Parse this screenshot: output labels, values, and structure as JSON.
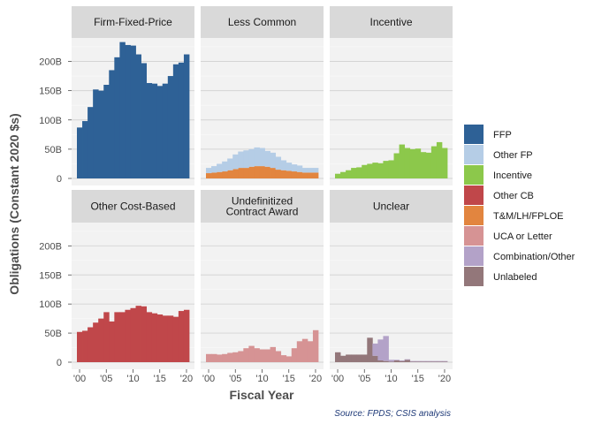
{
  "chart_data": {
    "type": "bar",
    "subtype": "faceted-stacked-bar",
    "xlabel": "Fiscal Year",
    "ylabel": "Obligations (Constant 2020 $s)",
    "source": "Source: FPDS; CSIS analysis",
    "x": [
      2000,
      2001,
      2002,
      2003,
      2004,
      2005,
      2006,
      2007,
      2008,
      2009,
      2010,
      2011,
      2012,
      2013,
      2014,
      2015,
      2016,
      2017,
      2018,
      2019,
      2020
    ],
    "x_ticks": [
      {
        "value": 2000,
        "label": "'00"
      },
      {
        "value": 2005,
        "label": "'05"
      },
      {
        "value": 2010,
        "label": "'10"
      },
      {
        "value": 2015,
        "label": "'15"
      },
      {
        "value": 2020,
        "label": "'20"
      }
    ],
    "y_ticks": [
      {
        "value": 0,
        "label": "0"
      },
      {
        "value": 50,
        "label": "50B"
      },
      {
        "value": 100,
        "label": "100B"
      },
      {
        "value": 150,
        "label": "150B"
      },
      {
        "value": 200,
        "label": "200B"
      }
    ],
    "ylim": [
      0,
      240
    ],
    "y_units": "billions of constant 2020 dollars",
    "grid": true,
    "legend_position": "right",
    "legend": [
      {
        "label": "FFP",
        "color": "#2e6196"
      },
      {
        "label": "Other FP",
        "color": "#b5cde6"
      },
      {
        "label": "Incentive",
        "color": "#8cc84b"
      },
      {
        "label": "Other CB",
        "color": "#c0474a"
      },
      {
        "label": "T&M/LH/FPLOE",
        "color": "#e2853f"
      },
      {
        "label": "UCA or Letter",
        "color": "#d69394"
      },
      {
        "label": "Combination/Other",
        "color": "#b3a2c8"
      },
      {
        "label": "Unlabeled",
        "color": "#93777a"
      }
    ],
    "panels": [
      {
        "title": "Firm-Fixed-Price",
        "series": [
          {
            "name": "FFP",
            "color": "#2e6196",
            "values": [
              87,
              98,
              122,
              152,
              150,
              160,
              185,
              207,
              233,
              228,
              227,
              212,
              197,
              163,
              162,
              158,
              162,
              175,
              195,
              198,
              212
            ]
          }
        ]
      },
      {
        "title": "Less Common",
        "series": [
          {
            "name": "T&M/LH/FPLOE",
            "color": "#e2853f",
            "values": [
              9,
              10,
              11,
              12,
              14,
              16,
              18,
              18,
              20,
              21,
              21,
              20,
              18,
              15,
              14,
              13,
              12,
              11,
              10,
              10,
              10
            ]
          },
          {
            "name": "Other FP",
            "color": "#b5cde6",
            "values": [
              9,
              11,
              14,
              17,
              20,
              25,
              28,
              30,
              30,
              32,
              31,
              27,
              26,
              22,
              17,
              14,
              12,
              11,
              8,
              8,
              8
            ]
          }
        ]
      },
      {
        "title": "Incentive",
        "series": [
          {
            "name": "Incentive",
            "color": "#8cc84b",
            "values": [
              8,
              11,
              14,
              18,
              19,
              23,
              25,
              27,
              26,
              30,
              31,
              43,
              58,
              52,
              50,
              51,
              45,
              44,
              55,
              62,
              52
            ]
          }
        ]
      },
      {
        "title": "Other Cost-Based",
        "series": [
          {
            "name": "Other CB",
            "color": "#c0474a",
            "values": [
              52,
              54,
              60,
              68,
              75,
              86,
              70,
              86,
              86,
              90,
              93,
              97,
              96,
              86,
              84,
              82,
              80,
              80,
              78,
              88,
              90
            ]
          }
        ]
      },
      {
        "title": "Undefinitized\nContract Award",
        "series": [
          {
            "name": "UCA or Letter",
            "color": "#d69394",
            "values": [
              14,
              14,
              13,
              14,
              16,
              17,
              19,
              24,
              28,
              24,
              22,
              22,
              26,
              19,
              12,
              10,
              24,
              36,
              40,
              36,
              55
            ]
          }
        ]
      },
      {
        "title": "Unclear",
        "series": [
          {
            "name": "Unlabeled",
            "color": "#93777a",
            "values": [
              17,
              11,
              13,
              13,
              13,
              13,
              42,
              11,
              3,
              2,
              1,
              3,
              2,
              4,
              1,
              1,
              1,
              1,
              1,
              1,
              1
            ]
          },
          {
            "name": "Combination/Other",
            "color": "#b3a2c8",
            "values": [
              0,
              0,
              0,
              0,
              0,
              0,
              0,
              21,
              36,
              43,
              3,
              1,
              1,
              1,
              1,
              1,
              1,
              1,
              1,
              1,
              1
            ]
          }
        ]
      }
    ]
  }
}
